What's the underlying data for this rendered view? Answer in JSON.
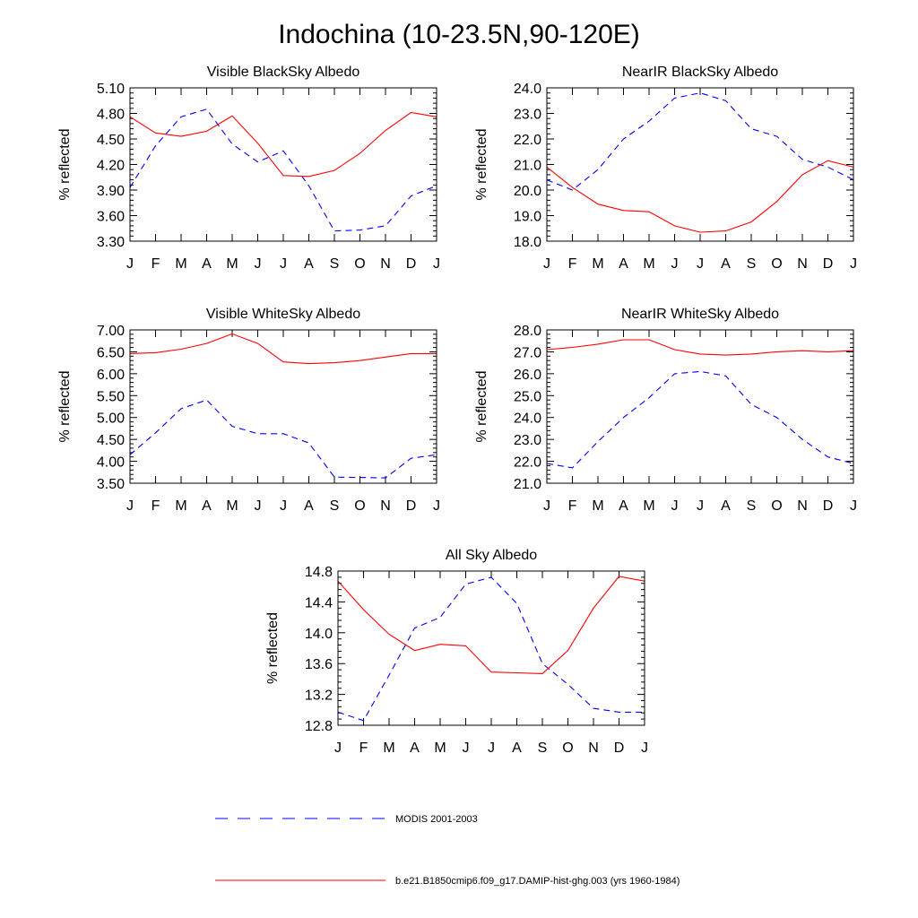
{
  "figure_title": "Indochina (10-23.5N,90-120E)",
  "colors": {
    "modis": "#0000ff",
    "model": "#ff0000",
    "axis": "#000000"
  },
  "legend": [
    {
      "label": "MODIS 2001-2003",
      "color": "#0000ff",
      "dash": "dashed"
    },
    {
      "label": "b.e21.B1850cmip6.f09_g17.DAMIP-hist-ghg.003 (yrs 1960-1984)",
      "color": "#ff0000",
      "dash": "solid"
    }
  ],
  "chart_data": [
    {
      "type": "line",
      "title": "Visible BlackSky Albedo",
      "ylabel": "% reflected",
      "xlabel": "",
      "categories": [
        "J",
        "F",
        "M",
        "A",
        "M",
        "J",
        "J",
        "A",
        "S",
        "O",
        "N",
        "D",
        "J"
      ],
      "ylim": [
        3.3,
        5.1
      ],
      "yticks": [
        "3.30",
        "3.60",
        "3.90",
        "4.20",
        "4.50",
        "4.80",
        "5.10"
      ],
      "series": [
        {
          "key": "modis",
          "values": [
            3.93,
            4.42,
            4.76,
            4.85,
            4.44,
            4.23,
            4.36,
            3.95,
            3.42,
            3.43,
            3.48,
            3.83,
            3.95
          ]
        },
        {
          "key": "model",
          "values": [
            4.76,
            4.57,
            4.53,
            4.59,
            4.77,
            4.45,
            4.07,
            4.06,
            4.13,
            4.33,
            4.6,
            4.81,
            4.76
          ]
        }
      ]
    },
    {
      "type": "line",
      "title": "NearIR BlackSky Albedo",
      "ylabel": "% reflected",
      "xlabel": "",
      "categories": [
        "J",
        "F",
        "M",
        "A",
        "M",
        "J",
        "J",
        "A",
        "S",
        "O",
        "N",
        "D",
        "J"
      ],
      "ylim": [
        18.0,
        24.0
      ],
      "yticks": [
        "18.0",
        "19.0",
        "20.0",
        "21.0",
        "22.0",
        "23.0",
        "24.0"
      ],
      "series": [
        {
          "key": "modis",
          "values": [
            20.4,
            20.0,
            20.8,
            22.0,
            22.7,
            23.6,
            23.8,
            23.5,
            22.4,
            22.1,
            21.2,
            20.9,
            20.4
          ]
        },
        {
          "key": "model",
          "values": [
            20.9,
            20.1,
            19.45,
            19.2,
            19.15,
            18.6,
            18.35,
            18.4,
            18.75,
            19.55,
            20.6,
            21.15,
            20.9
          ]
        }
      ]
    },
    {
      "type": "line",
      "title": "Visible WhiteSky Albedo",
      "ylabel": "% reflected",
      "xlabel": "",
      "categories": [
        "J",
        "F",
        "M",
        "A",
        "M",
        "J",
        "J",
        "A",
        "S",
        "O",
        "N",
        "D",
        "J"
      ],
      "ylim": [
        3.5,
        7.0
      ],
      "yticks": [
        "3.50",
        "4.00",
        "4.50",
        "5.00",
        "5.50",
        "6.00",
        "6.50",
        "7.00"
      ],
      "series": [
        {
          "key": "modis",
          "values": [
            4.15,
            4.65,
            5.2,
            5.4,
            4.8,
            4.63,
            4.63,
            4.42,
            3.64,
            3.63,
            3.62,
            4.07,
            4.15
          ]
        },
        {
          "key": "model",
          "values": [
            6.46,
            6.48,
            6.56,
            6.69,
            6.91,
            6.69,
            6.27,
            6.23,
            6.25,
            6.3,
            6.38,
            6.46,
            6.46
          ]
        }
      ]
    },
    {
      "type": "line",
      "title": "NearIR WhiteSky Albedo",
      "ylabel": "% reflected",
      "xlabel": "",
      "categories": [
        "J",
        "F",
        "M",
        "A",
        "M",
        "J",
        "J",
        "A",
        "S",
        "O",
        "N",
        "D",
        "J"
      ],
      "ylim": [
        21.0,
        28.0
      ],
      "yticks": [
        "21.0",
        "22.0",
        "23.0",
        "24.0",
        "25.0",
        "26.0",
        "27.0",
        "28.0"
      ],
      "series": [
        {
          "key": "modis",
          "values": [
            21.9,
            21.7,
            22.9,
            24.0,
            24.9,
            26.0,
            26.1,
            25.9,
            24.6,
            24.0,
            23.0,
            22.2,
            21.9
          ]
        },
        {
          "key": "model",
          "values": [
            27.1,
            27.2,
            27.35,
            27.55,
            27.55,
            27.1,
            26.9,
            26.85,
            26.9,
            27.0,
            27.05,
            27.0,
            27.05
          ]
        }
      ]
    },
    {
      "type": "line",
      "title": "All Sky Albedo",
      "ylabel": "% reflected",
      "xlabel": "",
      "categories": [
        "J",
        "F",
        "M",
        "A",
        "M",
        "J",
        "J",
        "A",
        "S",
        "O",
        "N",
        "D",
        "J"
      ],
      "ylim": [
        12.8,
        14.8
      ],
      "yticks": [
        "12.8",
        "13.2",
        "13.6",
        "14.0",
        "14.4",
        "14.8"
      ],
      "series": [
        {
          "key": "modis",
          "values": [
            12.97,
            12.86,
            13.45,
            14.06,
            14.2,
            14.63,
            14.72,
            14.38,
            13.6,
            13.33,
            13.02,
            12.97,
            12.97
          ]
        },
        {
          "key": "model",
          "values": [
            14.67,
            14.3,
            13.98,
            13.77,
            13.85,
            13.83,
            13.49,
            13.48,
            13.47,
            13.77,
            14.32,
            14.73,
            14.67
          ]
        }
      ]
    }
  ]
}
